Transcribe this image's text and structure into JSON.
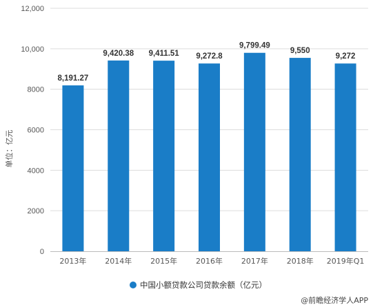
{
  "chart_data": {
    "type": "bar",
    "categories": [
      "2013年",
      "2014年",
      "2015年",
      "2016年",
      "2017年",
      "2018年",
      "2019年Q1"
    ],
    "series": [
      {
        "name": "中国小额贷款公司贷款余额（亿元）",
        "values": [
          8191.27,
          9420.38,
          9411.51,
          9272.8,
          9799.49,
          9550,
          9272
        ],
        "data_labels": [
          "8,191.27",
          "9,420.38",
          "9,411.51",
          "9,272.8",
          "9,799.49",
          "9,550",
          "9,272"
        ],
        "color": "#1a7dc7"
      }
    ],
    "ylabel": "单位：亿元",
    "ylim": [
      0,
      12000
    ],
    "yticks": [
      0,
      2000,
      4000,
      6000,
      8000,
      10000,
      12000
    ],
    "ytick_labels": [
      "0",
      "2000",
      "4000",
      "6000",
      "8000",
      "10,000",
      "12,000"
    ],
    "grid": true,
    "legend_position": "bottom-center"
  },
  "credit": {
    "text": "@前瞻经济学人APP"
  }
}
